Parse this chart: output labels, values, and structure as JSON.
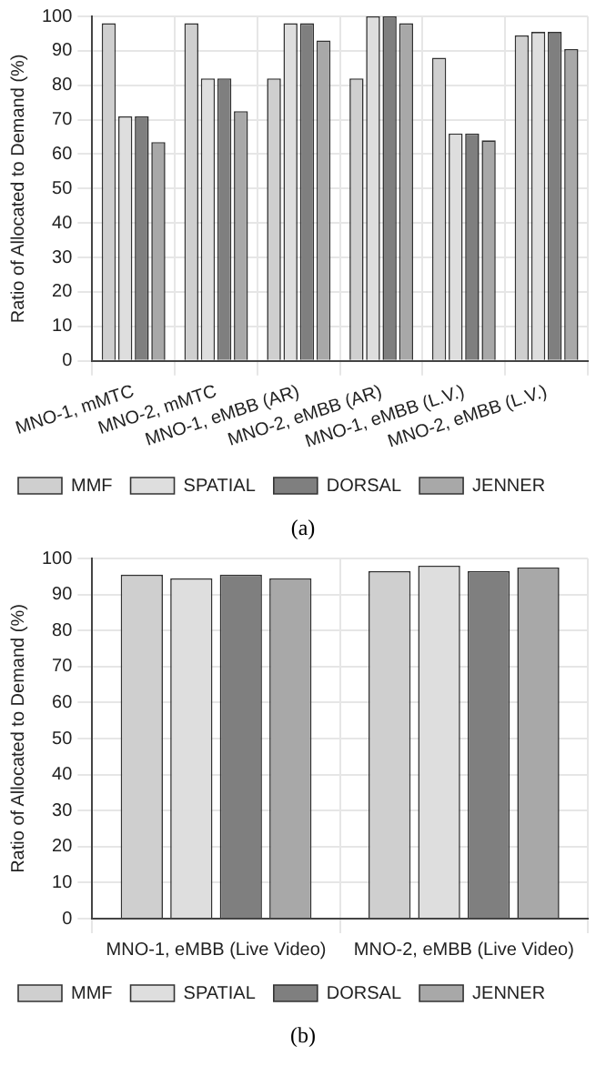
{
  "chart_data": [
    {
      "type": "bar",
      "ylabel": "Ratio of Allocated to Demand (%)",
      "categories": [
        "MNO-1, mMTC",
        "MNO-2, mMTC",
        "MNO-1, eMBB (AR)",
        "MNO-2, eMBB (AR)",
        "MNO-1, eMBB (L.V.)",
        "MNO-2, eMBB (L.V.)"
      ],
      "series": [
        {
          "name": "MMF",
          "color": "#cfcfcf",
          "values": [
            98,
            98,
            82,
            82,
            88,
            94.5
          ]
        },
        {
          "name": "SPATIAL",
          "color": "#dedede",
          "values": [
            71,
            82,
            98,
            100,
            66,
            95.5
          ]
        },
        {
          "name": "DORSAL",
          "color": "#7f7f7f",
          "values": [
            71,
            82,
            98,
            100,
            66,
            95.5
          ]
        },
        {
          "name": "JENNER",
          "color": "#a8a8a8",
          "values": [
            63.5,
            72.5,
            93,
            98,
            64,
            90.5
          ]
        }
      ],
      "ylim": [
        0,
        100
      ],
      "yticks": [
        0,
        10,
        20,
        30,
        40,
        50,
        60,
        70,
        80,
        90,
        100
      ],
      "grid": true,
      "legend": "bottom left",
      "annotations": [
        "(a)"
      ]
    },
    {
      "type": "bar",
      "ylabel": "Ratio of Allocated to Demand (%)",
      "categories": [
        "MNO-1, eMBB (Live Video)",
        "MNO-2, eMBB (Live Video)"
      ],
      "series": [
        {
          "name": "MMF",
          "color": "#cfcfcf",
          "values": [
            95.5,
            96.5
          ]
        },
        {
          "name": "SPATIAL",
          "color": "#dedede",
          "values": [
            94.5,
            98
          ]
        },
        {
          "name": "DORSAL",
          "color": "#7f7f7f",
          "values": [
            95.5,
            96.5
          ]
        },
        {
          "name": "JENNER",
          "color": "#a8a8a8",
          "values": [
            94.5,
            97.5
          ]
        }
      ],
      "ylim": [
        0,
        100
      ],
      "yticks": [
        0,
        10,
        20,
        30,
        40,
        50,
        60,
        70,
        80,
        90,
        100
      ],
      "grid": true,
      "legend": "bottom left",
      "annotations": [
        "(b)"
      ]
    }
  ]
}
